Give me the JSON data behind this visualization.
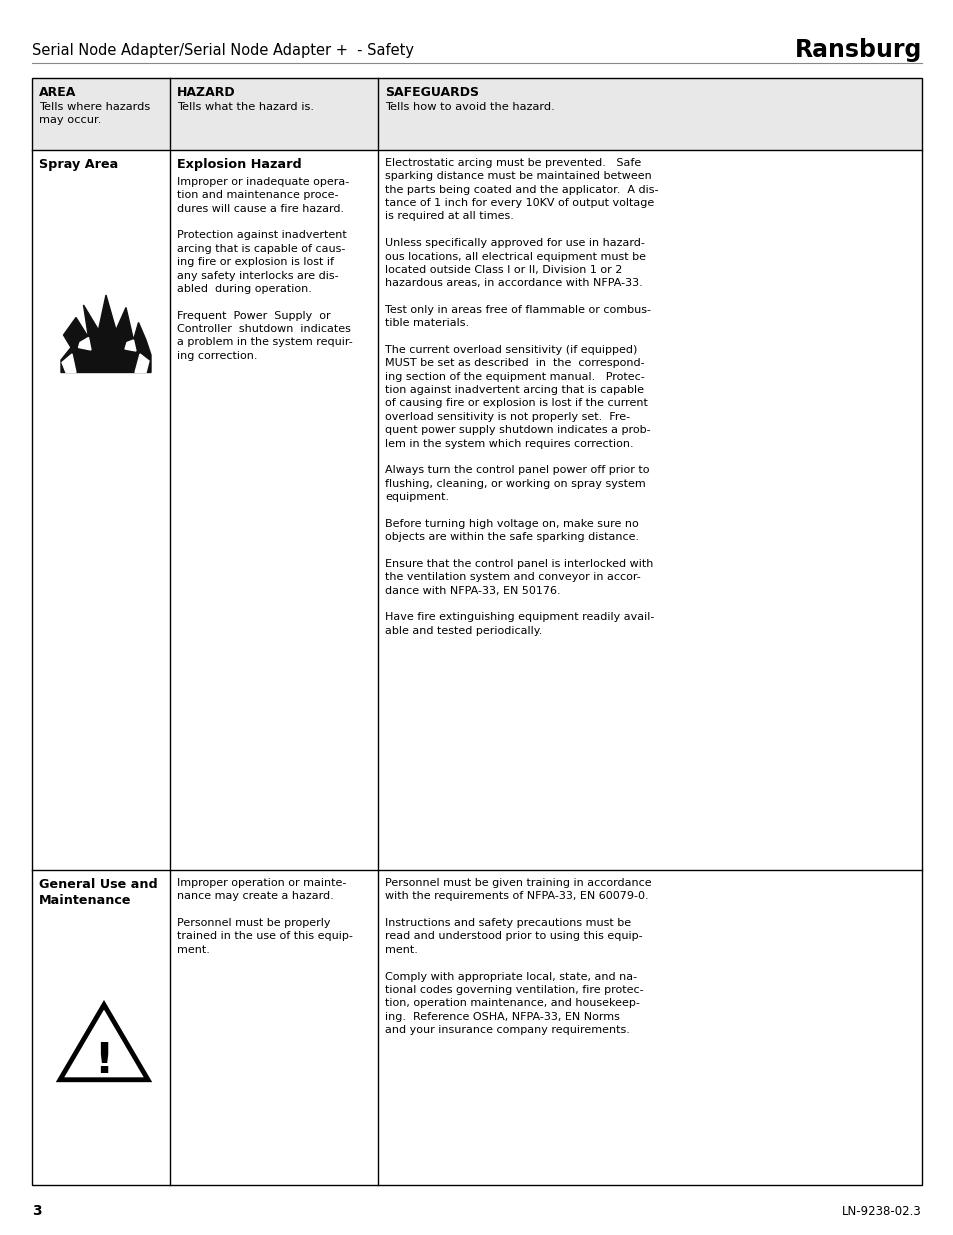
{
  "page_title_left": "Serial Node Adapter/Serial Node Adapter +  - Safety",
  "page_title_right": "Ransburg",
  "page_number": "3",
  "page_ref": "LN-9238-02.3",
  "background_color": "#ffffff",
  "table_border_color": "#000000",
  "header_bg_color": "#e8e8e8",
  "col1_header": "AREA",
  "col1_sub": "Tells where hazards\nmay occur.",
  "col2_header": "HAZARD",
  "col2_sub": "Tells what the hazard is.",
  "col3_header": "SAFEGUARDS",
  "col3_sub": "Tells how to avoid the hazard.",
  "row1_col1_title": "Spray Area",
  "row1_col2_title": "Explosion Hazard",
  "row1_col2_text": "Improper or inadequate opera-\ntion and maintenance proce-\ndures will cause a fire hazard.\n\nProtection against inadvertent\narcing that is capable of caus-\ning fire or explosion is lost if\nany safety interlocks are dis-\nabled  during operation.\n\nFrequent  Power  Supply  or\nController  shutdown  indicates\na problem in the system requir-\ning correction.",
  "row1_col3_text": "Electrostatic arcing must be prevented.   Safe\nsparking distance must be maintained between\nthe parts being coated and the applicator.  A dis-\ntance of 1 inch for every 10KV of output voltage\nis required at all times.\n\nUnless specifically approved for use in hazard-\nous locations, all electrical equipment must be\nlocated outside Class I or II, Division 1 or 2\nhazardous areas, in accordance with NFPA-33.\n\nTest only in areas free of flammable or combus-\ntible materials.\n\nThe current overload sensitivity (if equipped)\nMUST be set as described  in  the  correspond-\ning section of the equipment manual.   Protec-\ntion against inadvertent arcing that is capable\nof causing fire or explosion is lost if the current\noverload sensitivity is not properly set.  Fre-\nquent power supply shutdown indicates a prob-\nlem in the system which requires correction.\n\nAlways turn the control panel power off prior to\nflushing, cleaning, or working on spray system\nequipment.\n\nBefore turning high voltage on, make sure no\nobjects are within the safe sparking distance.\n\nEnsure that the control panel is interlocked with\nthe ventilation system and conveyor in accor-\ndance with NFPA-33, EN 50176.\n\nHave fire extinguishing equipment readily avail-\nable and tested periodically.",
  "row2_col1_title": "General Use and\nMaintenance",
  "row2_col2_text": "Improper operation or mainte-\nnance may create a hazard.\n\nPersonnel must be properly\ntrained in the use of this equip-\nment.",
  "row2_col3_text": "Personnel must be given training in accordance\nwith the requirements of NFPA-33, EN 60079-0.\n\nInstructions and safety precautions must be\nread and understood prior to using this equip-\nment.\n\nComply with appropriate local, state, and na-\ntional codes governing ventilation, fire protec-\ntion, operation maintenance, and housekeep-\ning.  Reference OSHA, NFPA-33, EN Norms\nand your insurance company requirements.",
  "fig_width": 9.54,
  "fig_height": 12.35,
  "dpi": 100
}
